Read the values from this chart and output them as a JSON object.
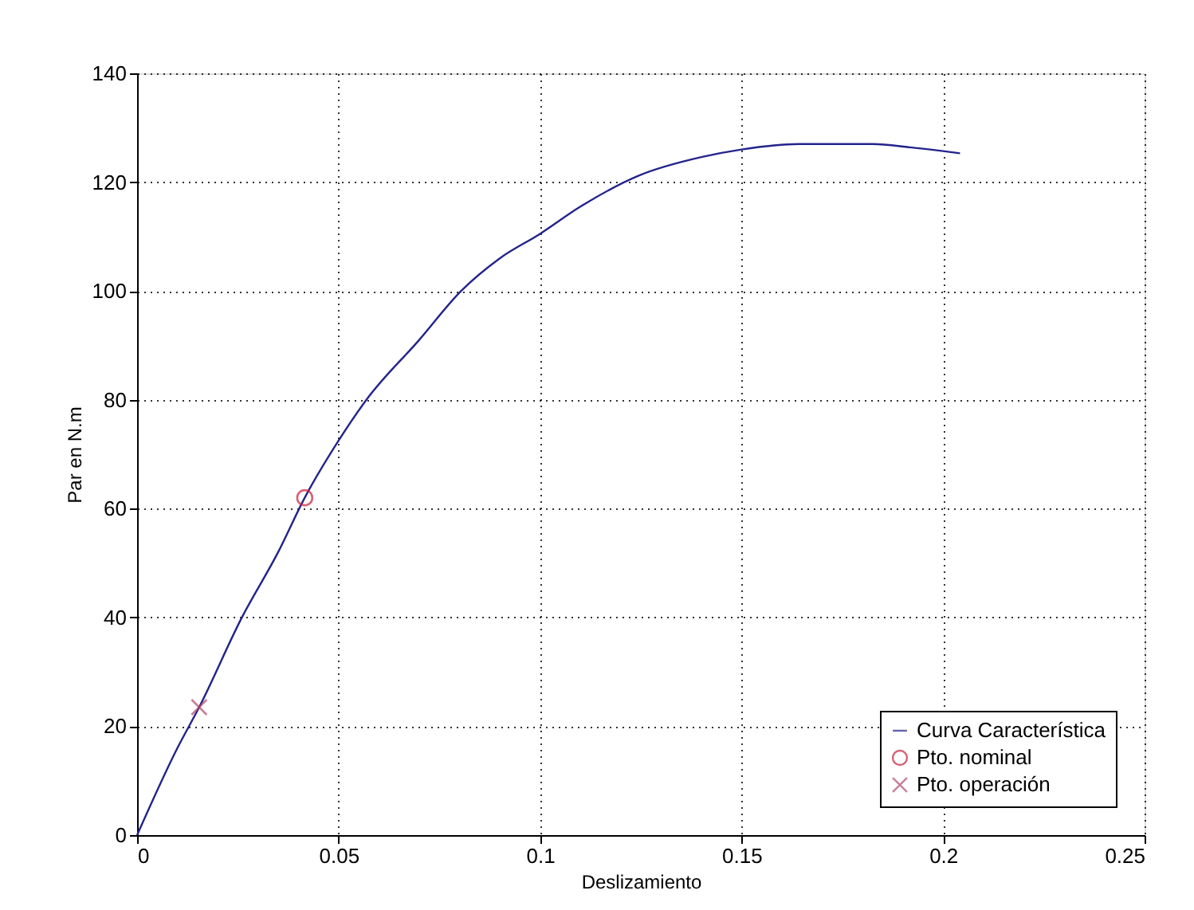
{
  "chart_data": {
    "type": "line",
    "xlabel": "Deslizamiento",
    "ylabel": "Par en N.m",
    "xlim": [
      0,
      0.25
    ],
    "xticks": [
      0,
      0.05,
      0.1,
      0.15,
      0.2,
      0.25
    ],
    "ylim": [
      0,
      140
    ],
    "yticks": [
      0,
      20,
      40,
      60,
      80,
      100,
      120,
      140
    ],
    "grid": true,
    "legend": "bottom right",
    "series": [
      {
        "name": "Curva Característica",
        "marker": "none",
        "color": "#23238c",
        "x": [
          0,
          0.01,
          0.0154,
          0.026,
          0.035,
          0.0416,
          0.05,
          0.0569,
          0.07,
          0.0804,
          0.09,
          0.1,
          0.11,
          0.1245,
          0.14,
          0.15,
          0.1642,
          0.1826,
          0.1918,
          0.2,
          0.2042
        ],
        "values": [
          0,
          16,
          23.5,
          40,
          52,
          62,
          72.5,
          80,
          91,
          100,
          106,
          110.5,
          115.5,
          121.2,
          124.6,
          126,
          127,
          127,
          126.4,
          125.7,
          125.3
        ]
      },
      {
        "name": "Pto. nominal",
        "type": "scatter",
        "marker": "circle",
        "color": "#c8203c",
        "x": [
          0.0416
        ],
        "values": [
          62
        ]
      },
      {
        "name": "Pto. operación",
        "type": "scatter",
        "marker": "cross",
        "color": "#b04a6a",
        "x": [
          0.0154
        ],
        "values": [
          23.5
        ]
      }
    ]
  }
}
